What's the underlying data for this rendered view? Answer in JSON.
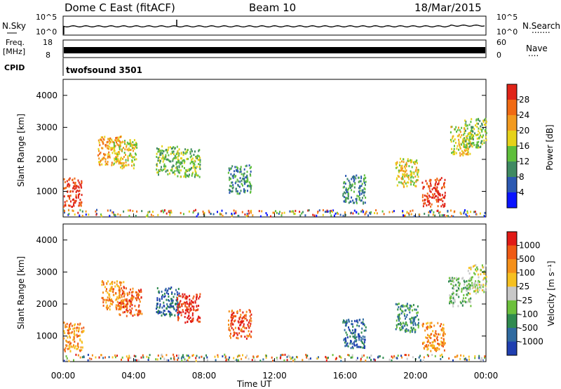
{
  "header": {
    "station": "Dome C East (fitACF)",
    "beam": "Beam 10",
    "date": "18/Mar/2015",
    "cpid_label": "CPID",
    "cpid_value": "twofsound 3501"
  },
  "strip_panels": {
    "nsky": {
      "left_label": "N.Sky",
      "left_ticks": [
        "10^5",
        "10^0"
      ],
      "right_ticks": [
        "10^5",
        "10^0"
      ],
      "right_label": "N.Search",
      "right_dots": "......."
    },
    "freq": {
      "left_label_1": "Freq.",
      "left_label_2": "[MHz]",
      "left_ticks": [
        "18",
        "8"
      ],
      "right_ticks": [
        "60",
        "0"
      ],
      "right_label": "Nave",
      "right_dots": "...."
    }
  },
  "chart_data": [
    {
      "type": "heatmap",
      "name": "power",
      "ylabel": "Slant Range [km]",
      "y_ticks": [
        "1000",
        "2000",
        "3000",
        "4000"
      ],
      "colorbar_label": "Power [dB]",
      "colorbar_ticks": [
        "4",
        "8",
        "12",
        "16",
        "20",
        "24",
        "28"
      ],
      "colors": [
        "#0a14ff",
        "#2c59b2",
        "#3f8a62",
        "#5fbf3c",
        "#e6d21a",
        "#f29a1f",
        "#f06a14",
        "#e02418"
      ],
      "blobs": [
        {
          "t": 0.4,
          "r": 1000,
          "level": 7
        },
        {
          "t": 2.6,
          "r": 2300,
          "level": 5
        },
        {
          "t": 3.5,
          "r": 2200,
          "level": 4
        },
        {
          "t": 5.9,
          "r": 2000,
          "level": 3
        },
        {
          "t": 7.1,
          "r": 1900,
          "level": 3
        },
        {
          "t": 10.0,
          "r": 1400,
          "level": 2
        },
        {
          "t": 16.5,
          "r": 1100,
          "level": 2
        },
        {
          "t": 19.5,
          "r": 1600,
          "level": 4
        },
        {
          "t": 21.0,
          "r": 1000,
          "level": 7
        },
        {
          "t": 22.6,
          "r": 2600,
          "level": 4
        },
        {
          "t": 23.4,
          "r": 2850,
          "level": 3
        }
      ]
    },
    {
      "type": "heatmap",
      "name": "velocity",
      "ylabel": "Slant Range [km]",
      "y_ticks": [
        "1000",
        "2000",
        "3000",
        "4000"
      ],
      "colorbar_label": "Velocity [m s⁻¹]",
      "colorbar_ticks": [
        "1000",
        "500",
        "100",
        "25",
        "-25",
        "-100",
        "-500",
        "-1000"
      ],
      "colors": [
        "#1f3fb0",
        "#2f6aa0",
        "#2f8a4f",
        "#6cc03c",
        "#c8c8c8",
        "#f6c020",
        "#f5901a",
        "#ef5a14",
        "#e11a16"
      ],
      "blobs": [
        {
          "t": 0.5,
          "r": 1000,
          "level": 6
        },
        {
          "t": 2.8,
          "r": 2300,
          "level": 6
        },
        {
          "t": 3.8,
          "r": 2100,
          "level": 7
        },
        {
          "t": 5.9,
          "r": 2100,
          "level": 1
        },
        {
          "t": 7.1,
          "r": 1900,
          "level": 8
        },
        {
          "t": 10.0,
          "r": 1400,
          "level": 7
        },
        {
          "t": 16.5,
          "r": 1100,
          "level": 1
        },
        {
          "t": 19.5,
          "r": 1600,
          "level": 2
        },
        {
          "t": 21.0,
          "r": 1000,
          "level": 6
        },
        {
          "t": 22.5,
          "r": 2400,
          "level": 3
        },
        {
          "t": 23.6,
          "r": 2800,
          "level": 4
        }
      ]
    }
  ],
  "x_axis": {
    "ticks": [
      "00:00",
      "04:00",
      "08:00",
      "12:00",
      "16:00",
      "20:00",
      "00:00"
    ],
    "label": "Time UT"
  }
}
